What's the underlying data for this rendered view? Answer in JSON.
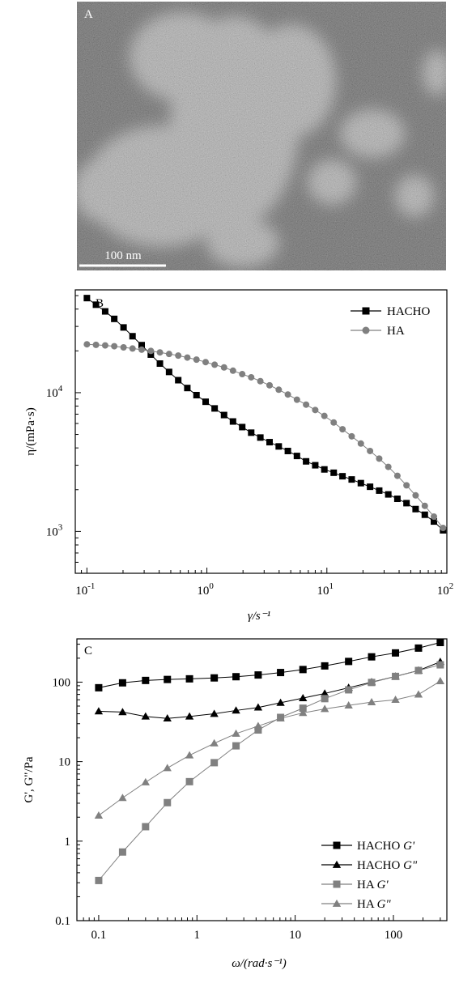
{
  "panel_a": {
    "label": "A",
    "scale_bar_label": "100 nm"
  },
  "chart_data": [
    {
      "type": "scatter",
      "panel_label": "B",
      "x_scale": "log",
      "y_scale": "log",
      "xlabel": "γ/s⁻¹",
      "ylabel": "η/(mPa·s)",
      "xlim": [
        0.08,
        100
      ],
      "ylim": [
        500,
        55000
      ],
      "x_ticks": [
        {
          "value": 0.1,
          "base": "10",
          "exp": "-1"
        },
        {
          "value": 1,
          "base": "10",
          "exp": "0"
        },
        {
          "value": 10,
          "base": "10",
          "exp": "1"
        },
        {
          "value": 100,
          "base": "10",
          "exp": "2"
        }
      ],
      "y_ticks": [
        {
          "value": 1000,
          "base": "10",
          "exp": "3"
        },
        {
          "value": 10000,
          "base": "10",
          "exp": "4"
        }
      ],
      "legend_position": "top-right",
      "series": [
        {
          "name": "HACHO",
          "marker": "square",
          "color": "#000000",
          "x": [
            0.1,
            0.119,
            0.142,
            0.169,
            0.202,
            0.24,
            0.286,
            0.341,
            0.406,
            0.484,
            0.577,
            0.687,
            0.819,
            0.976,
            1.16,
            1.39,
            1.65,
            1.97,
            2.34,
            2.79,
            3.33,
            3.97,
            4.73,
            5.63,
            6.71,
            8,
            9.53,
            11.4,
            13.5,
            16.1,
            19.2,
            22.9,
            27.3,
            32.5,
            38.7,
            46.1,
            54.9,
            65.5,
            78,
            93
          ],
          "y": [
            48000,
            43000,
            38500,
            34000,
            29500,
            25500,
            22000,
            18800,
            16200,
            14100,
            12300,
            10800,
            9600,
            8600,
            7700,
            6900,
            6200,
            5650,
            5150,
            4750,
            4400,
            4100,
            3800,
            3500,
            3200,
            3000,
            2800,
            2650,
            2500,
            2370,
            2230,
            2100,
            1970,
            1850,
            1720,
            1600,
            1450,
            1320,
            1180,
            1020
          ]
        },
        {
          "name": "HA",
          "marker": "circle",
          "color": "#808080",
          "x": [
            0.1,
            0.119,
            0.142,
            0.169,
            0.202,
            0.24,
            0.286,
            0.341,
            0.406,
            0.484,
            0.577,
            0.687,
            0.819,
            0.976,
            1.16,
            1.39,
            1.65,
            1.97,
            2.34,
            2.79,
            3.33,
            3.97,
            4.73,
            5.63,
            6.71,
            8,
            9.53,
            11.4,
            13.5,
            16.1,
            19.2,
            22.9,
            27.3,
            32.5,
            38.7,
            46.1,
            54.9,
            65.5,
            78,
            93
          ],
          "y": [
            22300,
            22100,
            21900,
            21600,
            21200,
            20800,
            20400,
            20000,
            19500,
            19000,
            18500,
            17900,
            17300,
            16600,
            15900,
            15200,
            14400,
            13600,
            12900,
            12100,
            11300,
            10500,
            9700,
            8900,
            8200,
            7500,
            6800,
            6100,
            5450,
            4850,
            4300,
            3800,
            3350,
            2920,
            2520,
            2150,
            1820,
            1530,
            1280,
            1060
          ]
        }
      ]
    },
    {
      "type": "line",
      "panel_label": "C",
      "x_scale": "log",
      "y_scale": "log",
      "xlabel": "ω/(rad·s⁻¹)",
      "ylabel": "G', G\"/Pa",
      "xlim": [
        0.06,
        350
      ],
      "ylim": [
        0.1,
        350
      ],
      "x_ticks": [
        {
          "value": 0.1,
          "label": "0.1"
        },
        {
          "value": 1,
          "label": "1"
        },
        {
          "value": 10,
          "label": "10"
        },
        {
          "value": 100,
          "label": "100"
        }
      ],
      "y_ticks": [
        {
          "value": 0.1,
          "label": "0.1"
        },
        {
          "value": 1,
          "label": "1"
        },
        {
          "value": 10,
          "label": "10"
        },
        {
          "value": 100,
          "label": "100"
        }
      ],
      "legend_position": "bottom-right",
      "x": [
        0.1,
        0.175,
        0.3,
        0.5,
        0.84,
        1.5,
        2.5,
        4.2,
        7.1,
        12,
        20,
        35,
        60,
        105,
        180,
        300
      ],
      "series": [
        {
          "name": "HACHO",
          "modulus": "G'",
          "marker": "square",
          "color": "#000000",
          "values": [
            85,
            98,
            105,
            108,
            110,
            113,
            117,
            123,
            132,
            144,
            160,
            182,
            208,
            233,
            268,
            315
          ]
        },
        {
          "name": "HACHO",
          "modulus": "G\"",
          "marker": "triangle",
          "color": "#000000",
          "values": [
            43,
            42,
            37,
            35,
            37,
            40,
            44,
            48,
            55,
            63,
            72,
            85,
            100,
            118,
            140,
            180
          ]
        },
        {
          "name": "HA",
          "modulus": "G'",
          "marker": "square",
          "color": "#808080",
          "values": [
            0.32,
            0.73,
            1.52,
            3.05,
            5.6,
            9.7,
            15.8,
            25,
            36,
            47,
            62,
            80,
            99,
            118,
            140,
            165
          ]
        },
        {
          "name": "HA",
          "modulus": "G\"",
          "marker": "triangle",
          "color": "#808080",
          "values": [
            2.1,
            3.5,
            5.5,
            8.3,
            12,
            17,
            22.5,
            28,
            35,
            41,
            46,
            51,
            56,
            60,
            70,
            103
          ]
        }
      ]
    }
  ]
}
